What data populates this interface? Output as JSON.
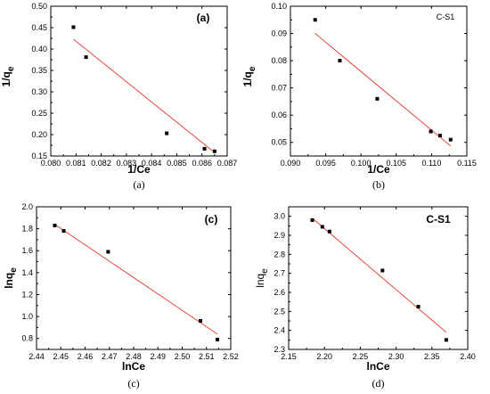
{
  "chart_data": [
    {
      "type": "scatter",
      "panel_label": "(a)",
      "caption": "(a)",
      "xlabel": "1/Ce",
      "ylabel_main": "1/q",
      "ylabel_sub": "e",
      "xlim": [
        0.08,
        0.087
      ],
      "ylim": [
        0.15,
        0.5
      ],
      "xticks": [
        0.08,
        0.081,
        0.082,
        0.083,
        0.084,
        0.085,
        0.086,
        0.087
      ],
      "xtick_labels": [
        "0.080",
        "0.081",
        "0.082",
        "0.083",
        "0.084",
        "0.085",
        "0.086",
        "0.087"
      ],
      "yticks": [
        0.15,
        0.2,
        0.25,
        0.3,
        0.35,
        0.4,
        0.45,
        0.5
      ],
      "ytick_labels": [
        "0.15",
        "0.20",
        "0.25",
        "0.30",
        "0.35",
        "0.40",
        "0.45",
        "0.50"
      ],
      "points": [
        [
          0.0809,
          0.451
        ],
        [
          0.0814,
          0.381
        ],
        [
          0.0846,
          0.203
        ],
        [
          0.0861,
          0.167
        ],
        [
          0.0865,
          0.161
        ]
      ],
      "fit": [
        [
          0.0809,
          0.423
        ],
        [
          0.0865,
          0.158
        ]
      ]
    },
    {
      "type": "scatter",
      "panel_label": "C-S1",
      "caption": "(b)",
      "xlabel": "1/Ce",
      "ylabel_main": "1/q",
      "ylabel_sub": "e",
      "xlim": [
        0.09,
        0.115
      ],
      "ylim": [
        0.045,
        0.1
      ],
      "xticks": [
        0.09,
        0.095,
        0.1,
        0.105,
        0.11,
        0.115
      ],
      "xtick_labels": [
        "0.090",
        "0.095",
        "0.100",
        "0.105",
        "0.110",
        "0.115"
      ],
      "yticks": [
        0.05,
        0.06,
        0.07,
        0.08,
        0.09,
        0.1
      ],
      "ytick_labels": [
        "0.05",
        "0.06",
        "0.07",
        "0.08",
        "0.09",
        "0.10"
      ],
      "points": [
        [
          0.0935,
          0.095
        ],
        [
          0.097,
          0.08
        ],
        [
          0.1023,
          0.066
        ],
        [
          0.1099,
          0.054
        ],
        [
          0.1112,
          0.0525
        ],
        [
          0.1127,
          0.051
        ]
      ],
      "fit": [
        [
          0.0935,
          0.09
        ],
        [
          0.1127,
          0.0487
        ]
      ]
    },
    {
      "type": "scatter",
      "panel_label": "(c)",
      "caption": "(c)",
      "xlabel": "lnCe",
      "ylabel_main": "lnq",
      "ylabel_sub": "e",
      "xlim": [
        2.44,
        2.52
      ],
      "ylim": [
        0.7,
        2.0
      ],
      "xticks": [
        2.44,
        2.45,
        2.46,
        2.47,
        2.48,
        2.49,
        2.5,
        2.51,
        2.52
      ],
      "xtick_labels": [
        "2.44",
        "2.45",
        "2.46",
        "2.47",
        "2.48",
        "2.49",
        "2.50",
        "2.51",
        "2.52"
      ],
      "yticks": [
        0.8,
        1.0,
        1.2,
        1.4,
        1.6,
        1.8,
        2.0
      ],
      "ytick_labels": [
        "0.8",
        "1.0",
        "1.2",
        "1.4",
        "1.6",
        "1.8",
        "2.0"
      ],
      "points": [
        [
          2.4475,
          1.83
        ],
        [
          2.4512,
          1.78
        ],
        [
          2.4695,
          1.59
        ],
        [
          2.5075,
          0.96
        ],
        [
          2.5145,
          0.79
        ]
      ],
      "fit": [
        [
          2.4475,
          1.84
        ],
        [
          2.5145,
          0.84
        ]
      ]
    },
    {
      "type": "scatter",
      "panel_label": "C-S1",
      "caption": "(d)",
      "xlabel": "lnCe",
      "ylabel_main": "lnq",
      "ylabel_sub": "e",
      "xlim": [
        2.15,
        2.4
      ],
      "ylim": [
        2.3,
        3.05
      ],
      "xticks": [
        2.15,
        2.2,
        2.25,
        2.3,
        2.35,
        2.4
      ],
      "xtick_labels": [
        "2.15",
        "2.20",
        "2.25",
        "2.30",
        "2.35",
        "2.40"
      ],
      "yticks": [
        2.3,
        2.4,
        2.5,
        2.6,
        2.7,
        2.8,
        2.9,
        3.0
      ],
      "ytick_labels": [
        "2.3",
        "2.4",
        "2.5",
        "2.6",
        "2.7",
        "2.8",
        "2.9",
        "3.0"
      ],
      "points": [
        [
          2.183,
          2.98
        ],
        [
          2.197,
          2.945
        ],
        [
          2.207,
          2.92
        ],
        [
          2.281,
          2.715
        ],
        [
          2.331,
          2.525
        ],
        [
          2.37,
          2.35
        ]
      ],
      "fit": [
        [
          2.183,
          2.99
        ],
        [
          2.37,
          2.39
        ]
      ]
    }
  ]
}
